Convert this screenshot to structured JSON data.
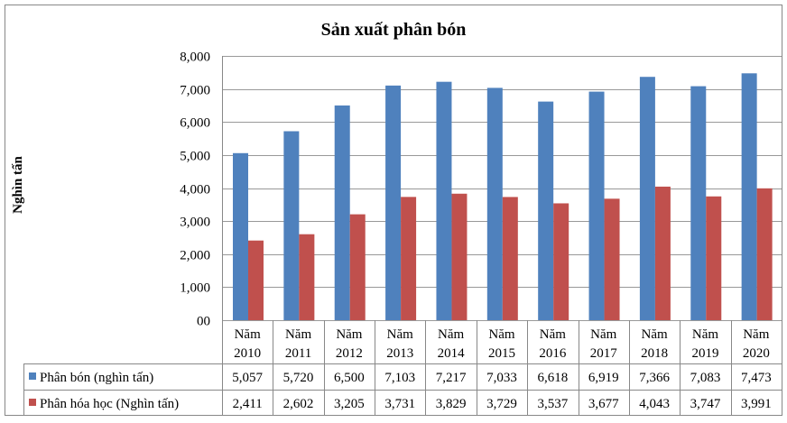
{
  "chart_data": {
    "type": "bar",
    "title": "Sản xuất phân bón",
    "ylabel": "Nghìn tấn",
    "xlabel": "",
    "ylim": [
      0,
      8000
    ],
    "yticks": [
      "00",
      "1,000",
      "2,000",
      "3,000",
      "4,000",
      "5,000",
      "6,000",
      "7,000",
      "8,000"
    ],
    "ytick_values": [
      0,
      1000,
      2000,
      3000,
      4000,
      5000,
      6000,
      7000,
      8000
    ],
    "grid": true,
    "legend": "data-table",
    "categories": [
      [
        "Năm",
        "2010"
      ],
      [
        "Năm",
        "2011"
      ],
      [
        "Năm",
        "2012"
      ],
      [
        "Năm",
        "2013"
      ],
      [
        "Năm",
        "2014"
      ],
      [
        "Năm",
        "2015"
      ],
      [
        "Năm",
        "2016"
      ],
      [
        "Năm",
        "2017"
      ],
      [
        "Năm",
        "2018"
      ],
      [
        "Năm",
        "2019"
      ],
      [
        "Năm",
        "2020"
      ]
    ],
    "series": [
      {
        "name": "Phân bón (nghìn tấn)",
        "color": "#4f81bd",
        "values": [
          5057,
          5720,
          6500,
          7103,
          7217,
          7033,
          6618,
          6919,
          7366,
          7083,
          7473
        ],
        "labels": [
          "5,057",
          "5,720",
          "6,500",
          "7,103",
          "7,217",
          "7,033",
          "6,618",
          "6,919",
          "7,366",
          "7,083",
          "7,473"
        ]
      },
      {
        "name": "Phân hóa học (Nghìn tấn)",
        "color": "#c0504d",
        "values": [
          2411,
          2602,
          3205,
          3731,
          3829,
          3729,
          3537,
          3677,
          4043,
          3747,
          3991
        ],
        "labels": [
          "2,411",
          "2,602",
          "3,205",
          "3,731",
          "3,829",
          "3,729",
          "3,537",
          "3,677",
          "4,043",
          "3,747",
          "3,991"
        ]
      }
    ]
  }
}
